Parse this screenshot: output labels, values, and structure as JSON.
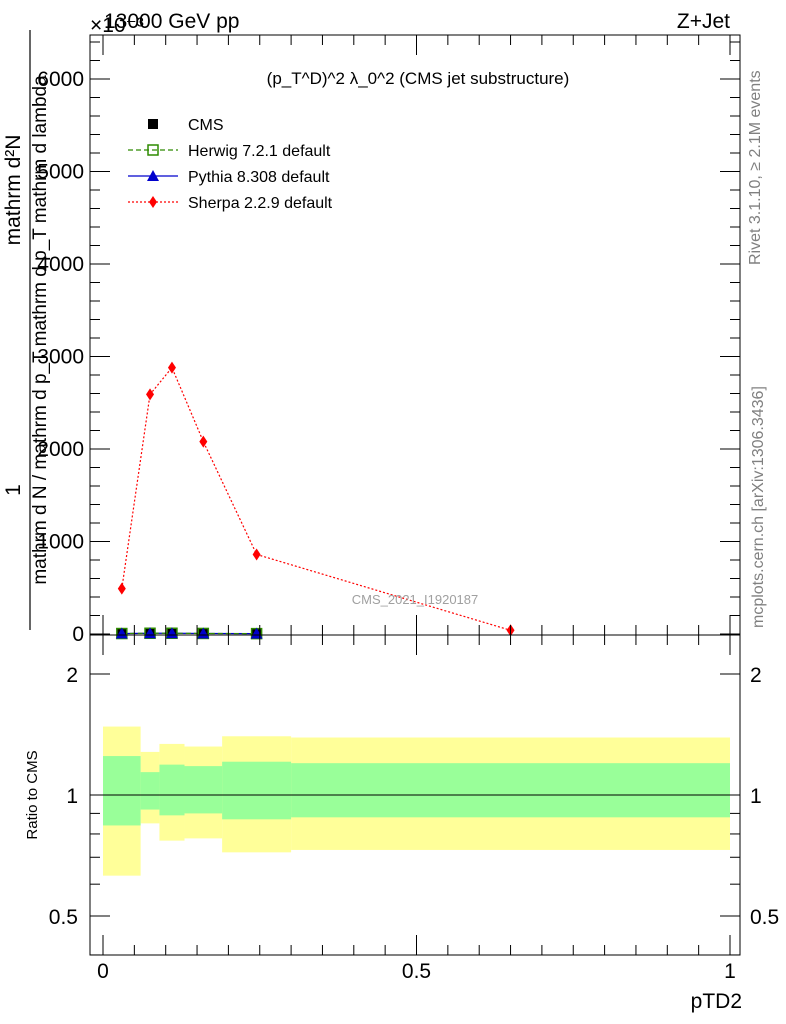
{
  "header": {
    "energy_label": "13000 GeV pp",
    "process_label": "Z+Jet",
    "exponent_label": "×10⁻³"
  },
  "side_labels": {
    "rivet": "Rivet 3.1.10, ≥ 2.1M events",
    "mcplots": "mcplots.cern.ch [arXiv:1306.3436]"
  },
  "chart_data": [
    {
      "type": "line",
      "title": "(p_T^D)^2 λ_0^2 (CMS jet substructure)",
      "ylabel_numerator": "1",
      "ylabel_denominator": "mathrm d N / mathrm d p_T mathrm d p_T mathrm d lambda",
      "ylabel_numerator_secondary": "mathrm d²N",
      "watermark": "CMS_2021_I1920187",
      "xlim": [
        0,
        1
      ],
      "ylim": [
        0,
        6500
      ],
      "y_ticks": [
        {
          "value": 0,
          "label": "0"
        },
        {
          "value": 1000,
          "label": "1000"
        },
        {
          "value": 2000,
          "label": "2000"
        },
        {
          "value": 3000,
          "label": "3000"
        },
        {
          "value": 4000,
          "label": "4000"
        },
        {
          "value": 5000,
          "label": "5000"
        },
        {
          "value": 6000,
          "label": "6000"
        }
      ],
      "legend_position": "top-left",
      "series": [
        {
          "name": "CMS",
          "color": "#000000",
          "marker": "filled-square",
          "line": "none",
          "x": [
            0.03,
            0.075,
            0.11,
            0.16,
            0.245
          ],
          "y": [
            5,
            8,
            8,
            6,
            4
          ]
        },
        {
          "name": "Herwig 7.2.1 default",
          "color": "#2e8b00",
          "marker": "open-square",
          "line": "dashed",
          "x": [
            0.03,
            0.075,
            0.11,
            0.16,
            0.245
          ],
          "y": [
            5,
            8,
            8,
            6,
            4
          ]
        },
        {
          "name": "Pythia 8.308 default",
          "color": "#0000cc",
          "marker": "filled-triangle",
          "line": "solid",
          "x": [
            0.03,
            0.075,
            0.11,
            0.16,
            0.245
          ],
          "y": [
            5,
            8,
            8,
            6,
            4
          ]
        },
        {
          "name": "Sherpa 2.2.9 default",
          "color": "#ff0000",
          "marker": "filled-diamond",
          "line": "dotted",
          "x": [
            0.03,
            0.075,
            0.11,
            0.16,
            0.245,
            0.65
          ],
          "y": [
            490,
            2590,
            2880,
            2080,
            860,
            40
          ]
        }
      ]
    },
    {
      "type": "area",
      "ylabel": "Ratio to CMS",
      "xlabel": "pTD2",
      "xlim": [
        0,
        1
      ],
      "ylim": [
        0.3,
        2.35
      ],
      "scale": "log",
      "x_ticks": [
        {
          "value": 0,
          "label": "0"
        },
        {
          "value": 0.5,
          "label": "0.5"
        },
        {
          "value": 1,
          "label": "1"
        }
      ],
      "y_ticks": [
        {
          "value": 0.5,
          "label": "0.5"
        },
        {
          "value": 1,
          "label": "1"
        },
        {
          "value": 2,
          "label": "2"
        }
      ],
      "bins": [
        {
          "lo": 0.0,
          "hi": 0.06,
          "inner": [
            0.84,
            1.25
          ],
          "outer": [
            0.63,
            1.48
          ]
        },
        {
          "lo": 0.06,
          "hi": 0.09,
          "inner": [
            0.92,
            1.14
          ],
          "outer": [
            0.85,
            1.28
          ]
        },
        {
          "lo": 0.09,
          "hi": 0.13,
          "inner": [
            0.89,
            1.19
          ],
          "outer": [
            0.77,
            1.34
          ]
        },
        {
          "lo": 0.13,
          "hi": 0.19,
          "inner": [
            0.9,
            1.18
          ],
          "outer": [
            0.78,
            1.32
          ]
        },
        {
          "lo": 0.19,
          "hi": 0.3,
          "inner": [
            0.87,
            1.21
          ],
          "outer": [
            0.72,
            1.4
          ]
        },
        {
          "lo": 0.3,
          "hi": 1.0,
          "inner": [
            0.88,
            1.2
          ],
          "outer": [
            0.73,
            1.39
          ]
        }
      ],
      "inner_color": "#99ff99",
      "outer_color": "#ffff99",
      "reference_line": 1
    }
  ]
}
